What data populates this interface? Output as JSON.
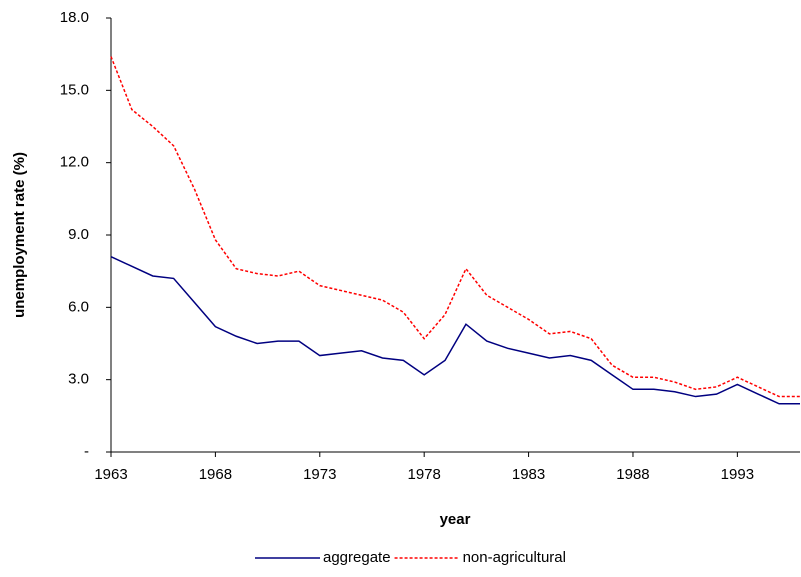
{
  "chart_data": {
    "type": "line",
    "x_label": "year",
    "y_label": "unemployment rate (%)",
    "x": [
      1963,
      1964,
      1965,
      1966,
      1967,
      1968,
      1969,
      1970,
      1971,
      1972,
      1973,
      1974,
      1975,
      1976,
      1977,
      1978,
      1979,
      1980,
      1981,
      1982,
      1983,
      1984,
      1985,
      1986,
      1987,
      1988,
      1989,
      1990,
      1991,
      1992,
      1993,
      1994,
      1995,
      1996
    ],
    "series": [
      {
        "name": "aggregate",
        "color": "#000080",
        "dashed": false,
        "values": [
          8.1,
          7.7,
          7.3,
          7.2,
          6.2,
          5.2,
          4.8,
          4.5,
          4.6,
          4.6,
          4.0,
          4.1,
          4.2,
          3.9,
          3.8,
          3.2,
          3.8,
          5.3,
          4.6,
          4.3,
          4.1,
          3.9,
          4.0,
          3.8,
          3.2,
          2.6,
          2.6,
          2.5,
          2.3,
          2.4,
          2.8,
          2.4,
          2.0,
          2.0
        ]
      },
      {
        "name": "non-agricultural",
        "color": "#ff0000",
        "dashed": true,
        "values": [
          16.4,
          14.2,
          13.5,
          12.7,
          10.9,
          8.8,
          7.6,
          7.4,
          7.3,
          7.5,
          6.9,
          6.7,
          6.5,
          6.3,
          5.8,
          4.7,
          5.7,
          7.6,
          6.5,
          6.0,
          5.5,
          4.9,
          5.0,
          4.7,
          3.6,
          3.1,
          3.1,
          2.9,
          2.6,
          2.7,
          3.1,
          2.7,
          2.3,
          2.3
        ]
      }
    ],
    "xlim": [
      1963,
      1996
    ],
    "xticks": [
      1963,
      1968,
      1973,
      1978,
      1983,
      1988,
      1993
    ],
    "ylim": [
      0,
      18
    ],
    "yticks": [
      {
        "value": 0,
        "label": "-"
      },
      {
        "value": 3,
        "label": "3.0"
      },
      {
        "value": 6,
        "label": "6.0"
      },
      {
        "value": 9,
        "label": "9.0"
      },
      {
        "value": 12,
        "label": "12.0"
      },
      {
        "value": 15,
        "label": "15.0"
      },
      {
        "value": 18,
        "label": "18.0"
      }
    ],
    "grid": false,
    "legend": "bottom"
  }
}
